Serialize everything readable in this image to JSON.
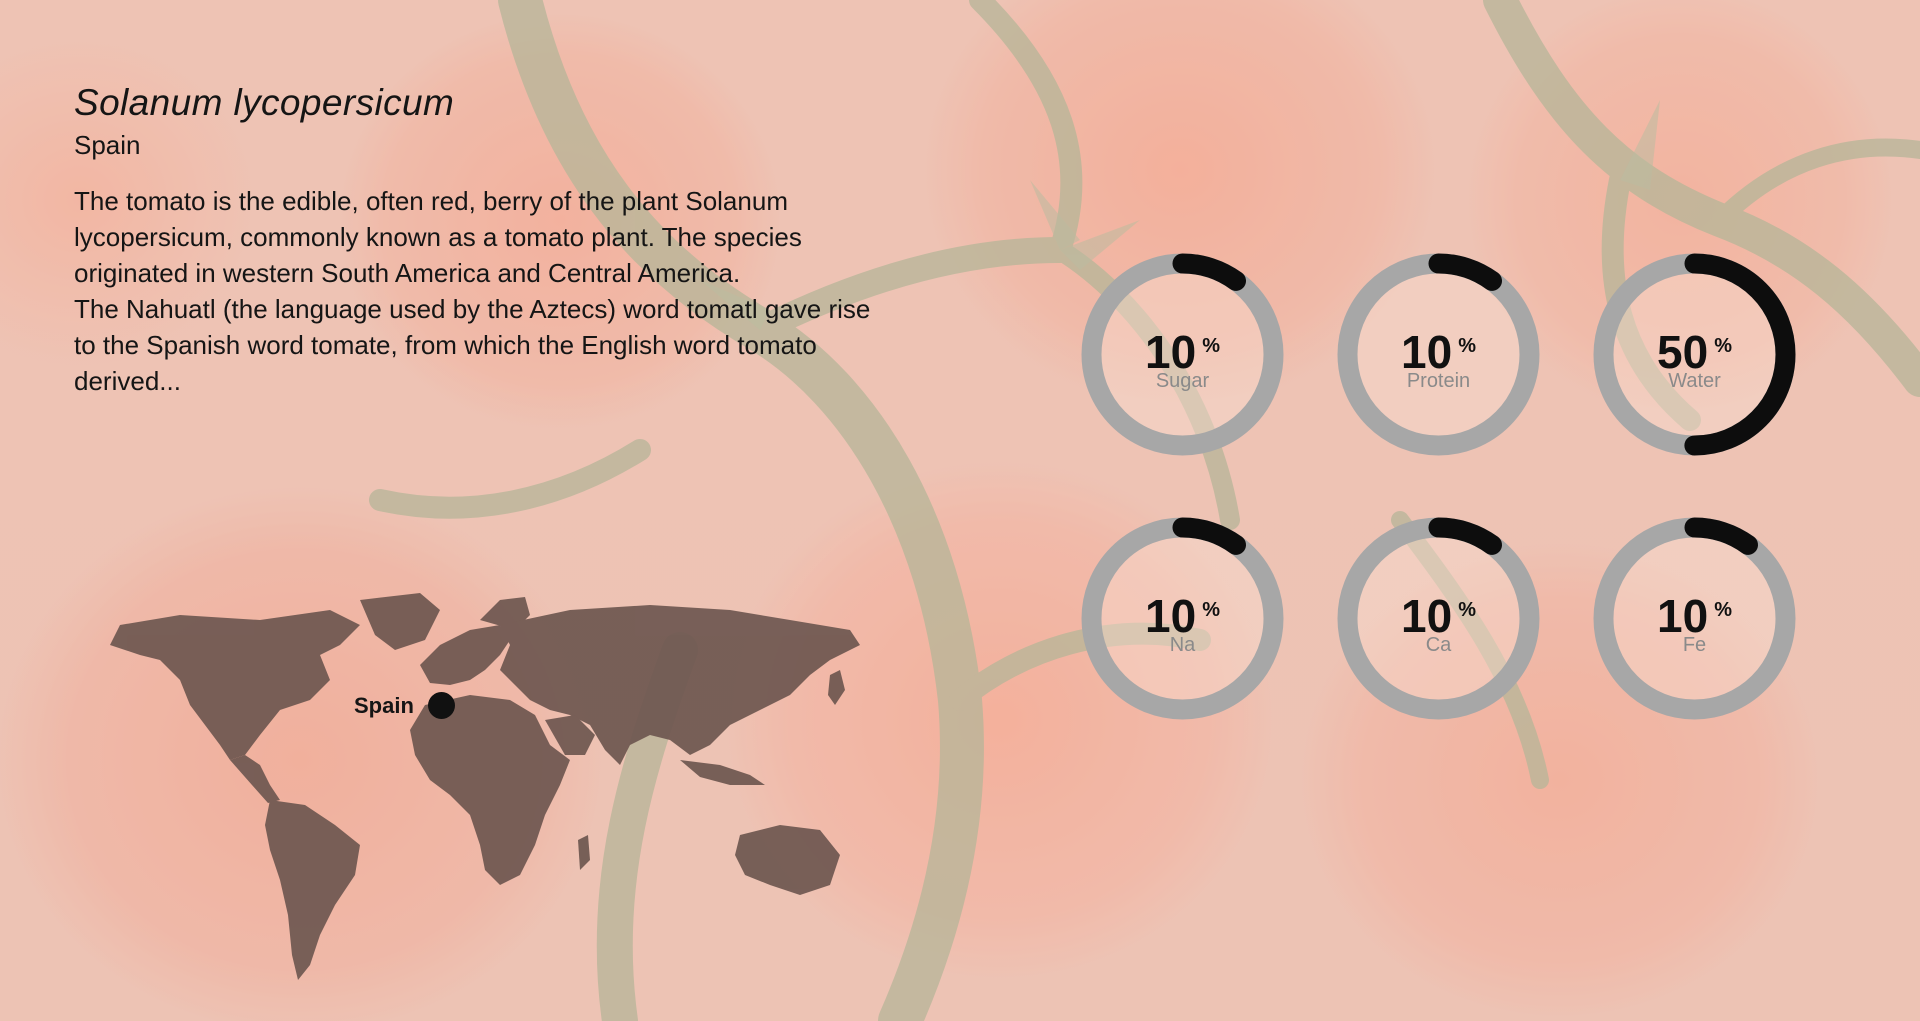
{
  "header": {
    "title": "Solanum lycopersicum",
    "subtitle": "Spain"
  },
  "description": {
    "paragraph_1": "The tomato is the edible, often red, berry of the plant Solanum lycopersicum, commonly known as a tomato plant. The species originated in western South America and Central America.",
    "paragraph_2": "The Nahuatl (the language used by the Aztecs) word tomatl gave rise to the Spanish word tomate, from which the English word tomato derived..."
  },
  "map": {
    "pin_label": "Spain"
  },
  "nutrients": [
    {
      "value": "10",
      "unit": "%",
      "label": "Sugar",
      "fraction": 0.1
    },
    {
      "value": "10",
      "unit": "%",
      "label": "Protein",
      "fraction": 0.1
    },
    {
      "value": "50",
      "unit": "%",
      "label": "Water",
      "fraction": 0.5
    },
    {
      "value": "10",
      "unit": "%",
      "label": "Na",
      "fraction": 0.1
    },
    {
      "value": "10",
      "unit": "%",
      "label": "Ca",
      "fraction": 0.1
    },
    {
      "value": "10",
      "unit": "%",
      "label": "Fe",
      "fraction": 0.1
    }
  ],
  "colors": {
    "gauge_track": "#a7a7a7",
    "gauge_fill": "#0d0d0d",
    "gauge_center": "#f6dccf",
    "map_land": "#6e5750"
  }
}
